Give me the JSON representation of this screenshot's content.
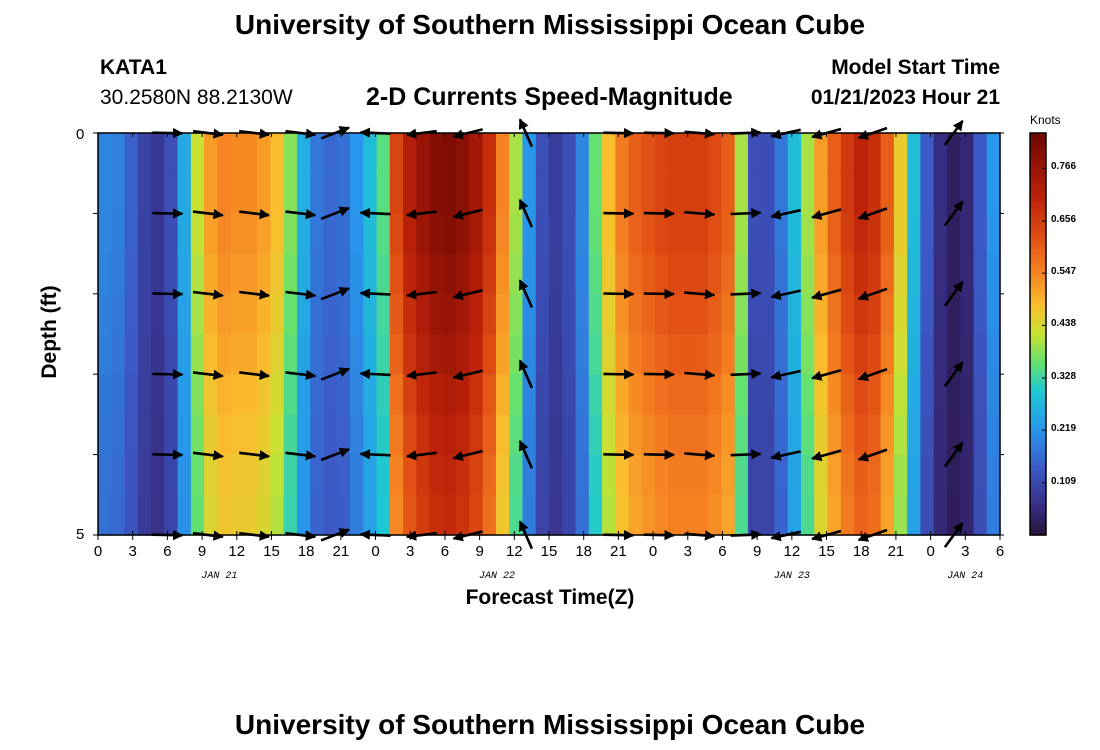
{
  "header": {
    "title": "University of Southern Mississippi Ocean Cube",
    "station_id": "KATA1",
    "coords": "30.2580N  88.2130W",
    "plot_title": "2-D Currents Speed-Magnitude",
    "model_start_label": "Model Start Time",
    "model_start_value": "01/21/2023 Hour 21"
  },
  "footer": {
    "title": "University of Southern Mississippi Ocean Cube"
  },
  "chart_data": {
    "type": "heatmap",
    "title": "2-D Currents Speed-Magnitude",
    "xlabel": "Forecast Time(Z)",
    "ylabel": "Depth (ft)",
    "ylim": [
      0,
      5
    ],
    "y_tick_labels": [
      "0",
      "5"
    ],
    "x_tick_labels": [
      "0",
      "3",
      "6",
      "9",
      "12",
      "15",
      "18",
      "21",
      "0",
      "3",
      "6",
      "9",
      "12",
      "15",
      "18",
      "21",
      "0",
      "3",
      "6",
      "9",
      "12",
      "15",
      "18",
      "21",
      "0",
      "3",
      "6"
    ],
    "day_labels": [
      "JAN 21",
      "JAN 22",
      "JAN 23",
      "JAN 24"
    ],
    "colorbar": {
      "label": "Knots",
      "ticks": [
        "0.766",
        "0.656",
        "0.547",
        "0.438",
        "0.328",
        "0.219",
        "0.109"
      ],
      "range": [
        0,
        0.84
      ]
    },
    "speed_by_time": [
      0.2,
      0.19,
      0.15,
      0.1,
      0.08,
      0.12,
      0.25,
      0.42,
      0.52,
      0.55,
      0.54,
      0.54,
      0.52,
      0.48,
      0.38,
      0.26,
      0.18,
      0.16,
      0.17,
      0.22,
      0.28,
      0.35,
      0.64,
      0.72,
      0.77,
      0.8,
      0.81,
      0.79,
      0.75,
      0.68,
      0.55,
      0.4,
      0.22,
      0.12,
      0.09,
      0.12,
      0.2,
      0.36,
      0.48,
      0.56,
      0.6,
      0.62,
      0.64,
      0.65,
      0.65,
      0.65,
      0.63,
      0.6,
      0.4,
      0.12,
      0.12,
      0.18,
      0.28,
      0.4,
      0.52,
      0.6,
      0.66,
      0.7,
      0.68,
      0.6,
      0.46,
      0.28,
      0.14,
      0.06,
      0.03,
      0.05,
      0.14,
      0.22
    ],
    "speed_by_depth_factor": [
      1.0,
      1.0,
      0.99,
      0.97,
      0.95,
      0.93,
      0.9,
      0.88,
      0.86,
      0.85
    ],
    "vector_depths": [
      0,
      1,
      2,
      3,
      4,
      5
    ],
    "vector_times": [
      {
        "t": 6,
        "u": 1,
        "v": 0.02
      },
      {
        "t": 9.5,
        "u": 1,
        "v": 0.12
      },
      {
        "t": 13.5,
        "u": 1,
        "v": 0.12
      },
      {
        "t": 17.5,
        "u": 1,
        "v": 0.12
      },
      {
        "t": 20.5,
        "u": 0.9,
        "v": -0.35
      },
      {
        "t": 24,
        "u": -1,
        "v": -0.05
      },
      {
        "t": 28,
        "u": -1,
        "v": 0.12
      },
      {
        "t": 32,
        "u": -1,
        "v": 0.25
      },
      {
        "t": 37,
        "u": -0.35,
        "v": -0.8
      },
      {
        "t": 45,
        "u": 1,
        "v": 0.02
      },
      {
        "t": 48.5,
        "u": 1,
        "v": 0.02
      },
      {
        "t": 52,
        "u": 1,
        "v": 0.08
      },
      {
        "t": 56,
        "u": 1,
        "v": -0.04
      },
      {
        "t": 59.5,
        "u": -1,
        "v": 0.22
      },
      {
        "t": 63,
        "u": -1,
        "v": 0.28
      },
      {
        "t": 67,
        "u": -1,
        "v": 0.35
      },
      {
        "t": 74,
        "u": 0.55,
        "v": -0.75
      }
    ]
  }
}
